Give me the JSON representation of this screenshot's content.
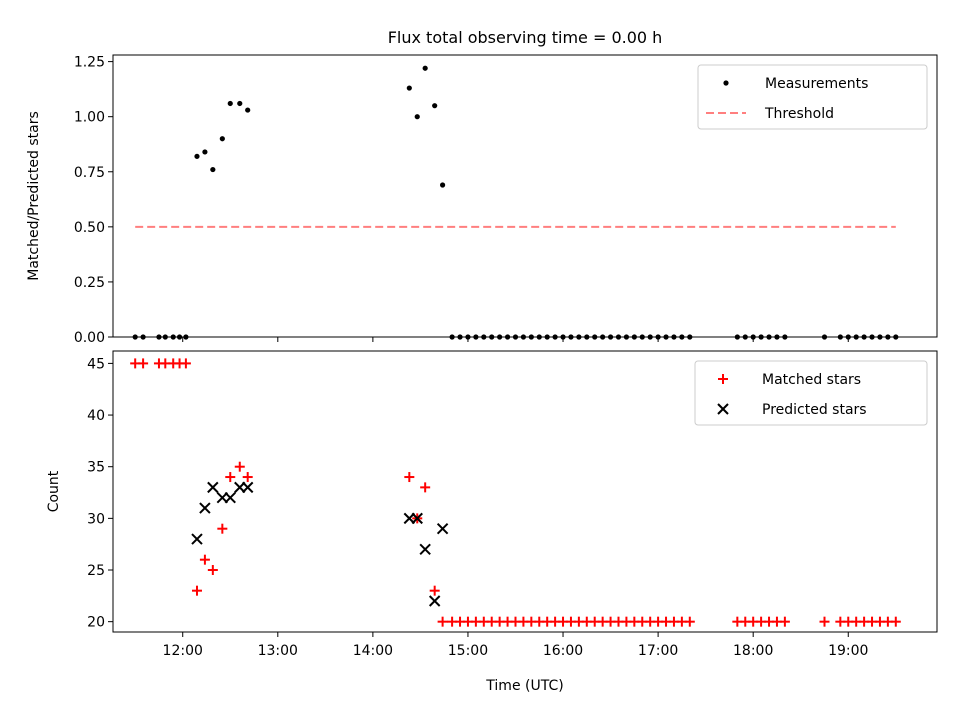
{
  "chart_data": [
    {
      "type": "scatter",
      "title": "Flux total observing time = 0.00 h",
      "ylabel": "Matched/Predicted stars",
      "xlabel": "",
      "xlim": [
        "11:16",
        "19:56"
      ],
      "ylim": [
        0,
        1.28
      ],
      "yticks": [
        "0.00",
        "0.25",
        "0.50",
        "0.75",
        "1.00",
        "1.25"
      ],
      "legend_position": "top-right",
      "series": [
        {
          "name": "Measurements",
          "marker": "dot",
          "color": "#000000",
          "points": [
            [
              "11:30",
              0
            ],
            [
              "11:35",
              0
            ],
            [
              "11:45",
              0
            ],
            [
              "11:49",
              0
            ],
            [
              "11:54",
              0
            ],
            [
              "11:58",
              0
            ],
            [
              "12:02",
              0
            ],
            [
              "12:09",
              0.82
            ],
            [
              "12:14",
              0.84
            ],
            [
              "12:19",
              0.76
            ],
            [
              "12:25",
              0.9
            ],
            [
              "12:30",
              1.06
            ],
            [
              "12:36",
              1.06
            ],
            [
              "12:41",
              1.03
            ],
            [
              "14:23",
              1.13
            ],
            [
              "14:28",
              1.0
            ],
            [
              "14:33",
              1.22
            ],
            [
              "14:39",
              1.05
            ],
            [
              "14:44",
              0.69
            ],
            [
              "14:50",
              0
            ],
            [
              "14:55",
              0
            ],
            [
              "15:00",
              0
            ],
            [
              "15:05",
              0
            ],
            [
              "15:10",
              0
            ],
            [
              "15:15",
              0
            ],
            [
              "15:20",
              0
            ],
            [
              "15:25",
              0
            ],
            [
              "15:30",
              0
            ],
            [
              "15:35",
              0
            ],
            [
              "15:40",
              0
            ],
            [
              "15:45",
              0
            ],
            [
              "15:50",
              0
            ],
            [
              "15:55",
              0
            ],
            [
              "16:00",
              0
            ],
            [
              "16:05",
              0
            ],
            [
              "16:10",
              0
            ],
            [
              "16:15",
              0
            ],
            [
              "16:20",
              0
            ],
            [
              "16:25",
              0
            ],
            [
              "16:30",
              0
            ],
            [
              "16:35",
              0
            ],
            [
              "16:40",
              0
            ],
            [
              "16:45",
              0
            ],
            [
              "16:50",
              0
            ],
            [
              "16:55",
              0
            ],
            [
              "17:00",
              0
            ],
            [
              "17:05",
              0
            ],
            [
              "17:10",
              0
            ],
            [
              "17:15",
              0
            ],
            [
              "17:20",
              0
            ],
            [
              "17:50",
              0
            ],
            [
              "17:55",
              0
            ],
            [
              "18:00",
              0
            ],
            [
              "18:05",
              0
            ],
            [
              "18:10",
              0
            ],
            [
              "18:15",
              0
            ],
            [
              "18:20",
              0
            ],
            [
              "18:45",
              0
            ],
            [
              "18:55",
              0
            ],
            [
              "19:00",
              0
            ],
            [
              "19:05",
              0
            ],
            [
              "19:10",
              0
            ],
            [
              "19:15",
              0
            ],
            [
              "19:20",
              0
            ],
            [
              "19:25",
              0
            ],
            [
              "19:30",
              0
            ]
          ]
        },
        {
          "name": "Threshold",
          "marker": "dashed-line",
          "color": "#ff7f7f",
          "points": [
            [
              "11:30",
              0.5
            ],
            [
              "19:30",
              0.5
            ]
          ]
        }
      ]
    },
    {
      "type": "scatter",
      "title": "",
      "ylabel": "Count",
      "xlabel": "Time (UTC)",
      "xlim": [
        "11:16",
        "19:56"
      ],
      "ylim": [
        19,
        46.2
      ],
      "yticks": [
        "20",
        "25",
        "30",
        "35",
        "40",
        "45"
      ],
      "xticks": [
        "12:00",
        "13:00",
        "14:00",
        "15:00",
        "16:00",
        "17:00",
        "18:00",
        "19:00"
      ],
      "legend_position": "top-right",
      "series": [
        {
          "name": "Matched stars",
          "marker": "plus",
          "color": "#ff0000",
          "points": [
            [
              "11:30",
              45
            ],
            [
              "11:35",
              45
            ],
            [
              "11:45",
              45
            ],
            [
              "11:49",
              45
            ],
            [
              "11:54",
              45
            ],
            [
              "11:58",
              45
            ],
            [
              "12:02",
              45
            ],
            [
              "12:09",
              23
            ],
            [
              "12:14",
              26
            ],
            [
              "12:19",
              25
            ],
            [
              "12:25",
              29
            ],
            [
              "12:30",
              34
            ],
            [
              "12:36",
              35
            ],
            [
              "12:41",
              34
            ],
            [
              "14:23",
              34
            ],
            [
              "14:28",
              30
            ],
            [
              "14:33",
              33
            ],
            [
              "14:39",
              23
            ],
            [
              "14:44",
              20
            ],
            [
              "14:50",
              20
            ],
            [
              "14:55",
              20
            ],
            [
              "15:00",
              20
            ],
            [
              "15:05",
              20
            ],
            [
              "15:10",
              20
            ],
            [
              "15:15",
              20
            ],
            [
              "15:20",
              20
            ],
            [
              "15:25",
              20
            ],
            [
              "15:30",
              20
            ],
            [
              "15:35",
              20
            ],
            [
              "15:40",
              20
            ],
            [
              "15:45",
              20
            ],
            [
              "15:50",
              20
            ],
            [
              "15:55",
              20
            ],
            [
              "16:00",
              20
            ],
            [
              "16:05",
              20
            ],
            [
              "16:10",
              20
            ],
            [
              "16:15",
              20
            ],
            [
              "16:20",
              20
            ],
            [
              "16:25",
              20
            ],
            [
              "16:30",
              20
            ],
            [
              "16:35",
              20
            ],
            [
              "16:40",
              20
            ],
            [
              "16:45",
              20
            ],
            [
              "16:50",
              20
            ],
            [
              "16:55",
              20
            ],
            [
              "17:00",
              20
            ],
            [
              "17:05",
              20
            ],
            [
              "17:10",
              20
            ],
            [
              "17:15",
              20
            ],
            [
              "17:20",
              20
            ],
            [
              "17:50",
              20
            ],
            [
              "17:55",
              20
            ],
            [
              "18:00",
              20
            ],
            [
              "18:05",
              20
            ],
            [
              "18:10",
              20
            ],
            [
              "18:15",
              20
            ],
            [
              "18:20",
              20
            ],
            [
              "18:45",
              20
            ],
            [
              "18:55",
              20
            ],
            [
              "19:00",
              20
            ],
            [
              "19:05",
              20
            ],
            [
              "19:10",
              20
            ],
            [
              "19:15",
              20
            ],
            [
              "19:20",
              20
            ],
            [
              "19:25",
              20
            ],
            [
              "19:30",
              20
            ]
          ]
        },
        {
          "name": "Predicted stars",
          "marker": "x",
          "color": "#000000",
          "points": [
            [
              "12:09",
              28
            ],
            [
              "12:14",
              31
            ],
            [
              "12:19",
              33
            ],
            [
              "12:25",
              32
            ],
            [
              "12:30",
              32
            ],
            [
              "12:36",
              33
            ],
            [
              "12:41",
              33
            ],
            [
              "14:23",
              30
            ],
            [
              "14:28",
              30
            ],
            [
              "14:33",
              27
            ],
            [
              "14:39",
              22
            ],
            [
              "14:44",
              29
            ]
          ]
        }
      ]
    }
  ]
}
